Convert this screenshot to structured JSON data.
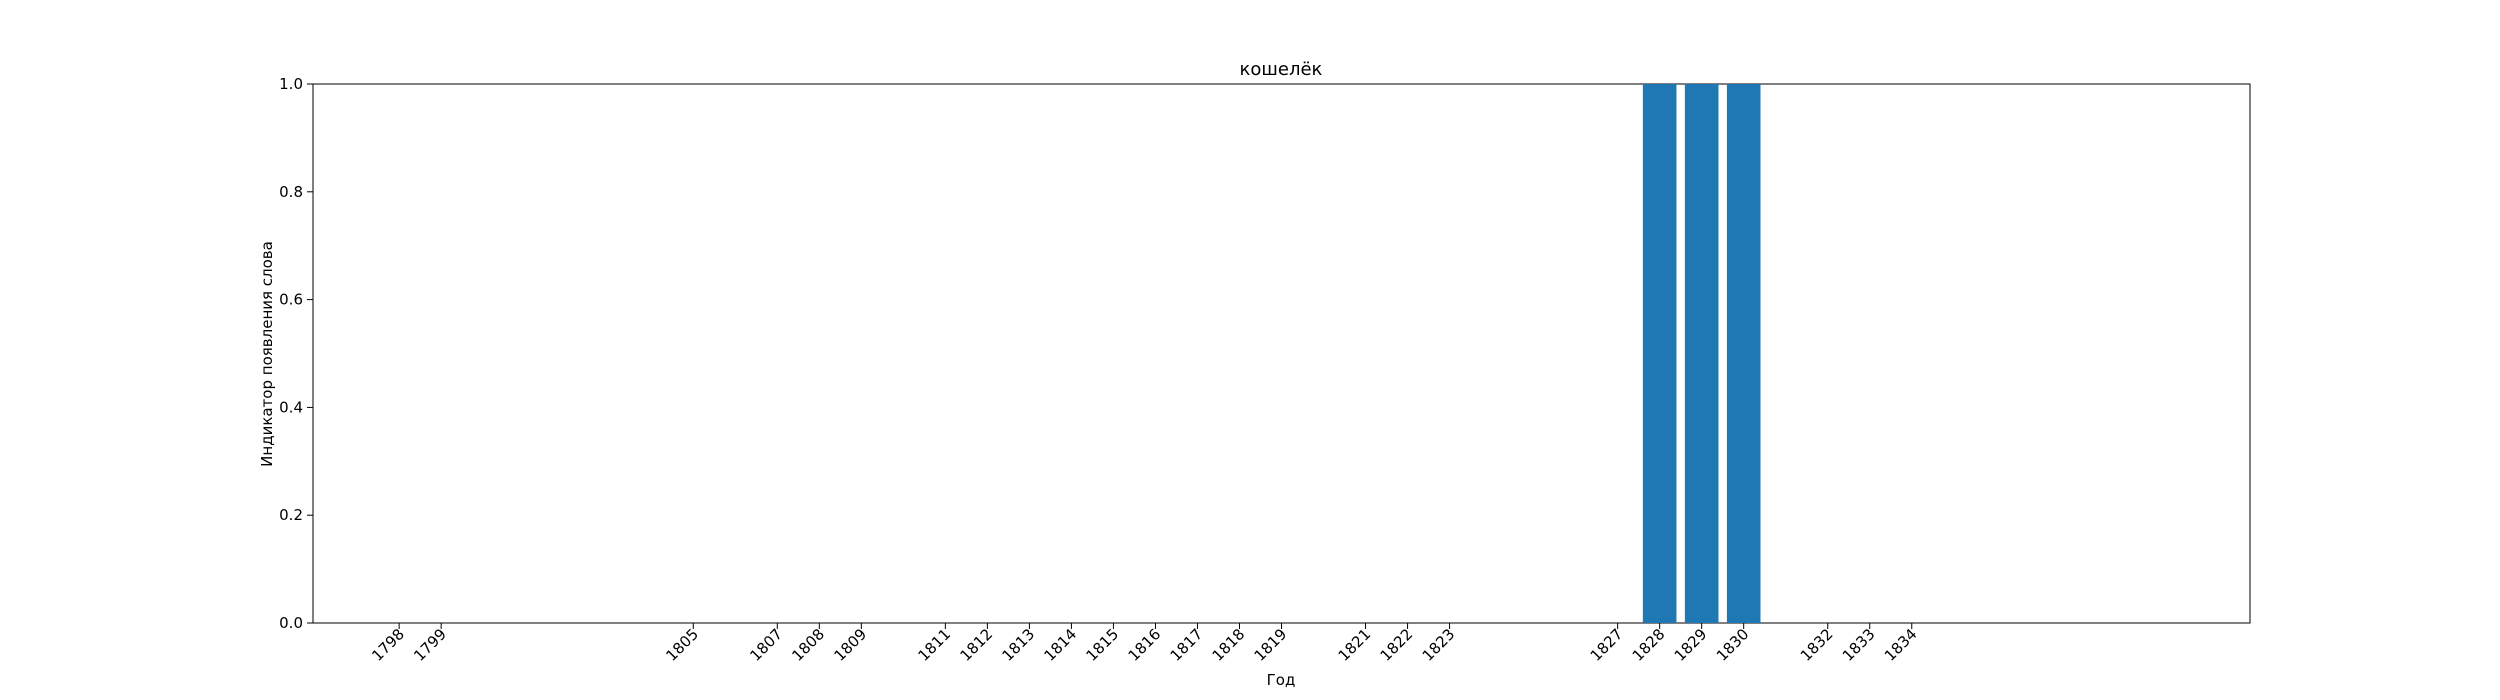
{
  "chart_data": {
    "type": "bar",
    "title": "кошелёк",
    "xlabel": "Год",
    "ylabel": "Индикатор появления слова",
    "xlim": [
      1795.95,
      1842.05
    ],
    "ylim": [
      0,
      1.0
    ],
    "yticks": [
      "0.0",
      "0.2",
      "0.4",
      "0.6",
      "0.8",
      "1.0"
    ],
    "x": [
      1798,
      1799,
      1805,
      1807,
      1808,
      1809,
      1811,
      1812,
      1813,
      1814,
      1815,
      1816,
      1817,
      1818,
      1819,
      1821,
      1822,
      1823,
      1827,
      1828,
      1829,
      1830,
      1832,
      1833,
      1834
    ],
    "xtick_labels": [
      "1798",
      "1799",
      "1805",
      "1807",
      "1808",
      "1809",
      "1811",
      "1812",
      "1813",
      "1814",
      "1815",
      "1816",
      "1817",
      "1818",
      "1819",
      "1821",
      "1822",
      "1823",
      "1827",
      "1828",
      "1829",
      "1830",
      "1832",
      "1833",
      "1834"
    ],
    "values": [
      0,
      0,
      0,
      0,
      0,
      0,
      0,
      0,
      0,
      0,
      0,
      0,
      0,
      0,
      0,
      0,
      0,
      0,
      0,
      1,
      1,
      1,
      0,
      0,
      0
    ],
    "bar_color": "#1f77b4",
    "grid": false,
    "legend": "none"
  }
}
